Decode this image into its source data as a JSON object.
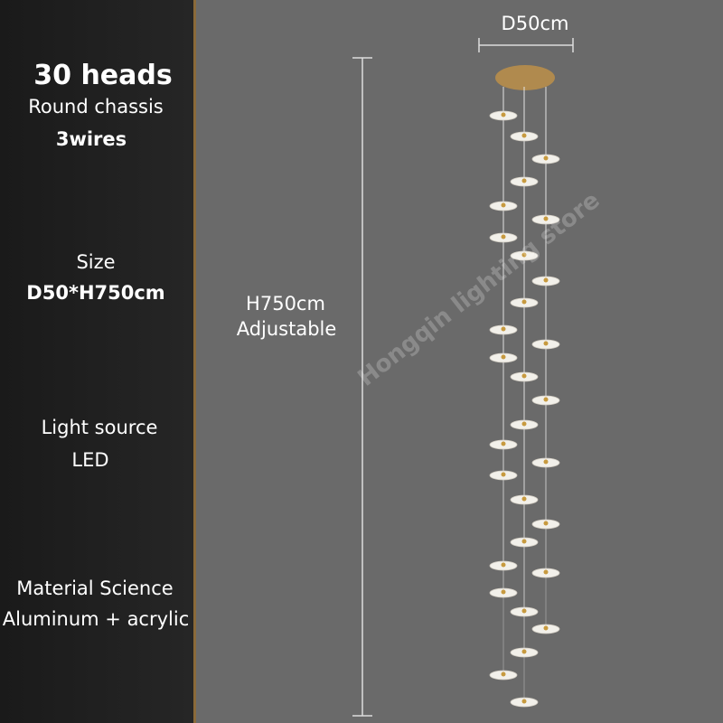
{
  "specs": [
    {
      "title": "30 heads",
      "lines": [
        "Round chassis",
        "3wires"
      ]
    },
    {
      "title": "Size",
      "lines": [
        "D50*H750cm"
      ]
    },
    {
      "title": "Light source",
      "lines": [
        "LED"
      ]
    },
    {
      "title": "Material Science",
      "lines": [
        "Aluminum + acrylic"
      ]
    }
  ],
  "dimensions": {
    "diameter": "D50cm",
    "height": "H750cm",
    "height_note": "Adjustable"
  },
  "watermark": "Hongqin lighting store"
}
